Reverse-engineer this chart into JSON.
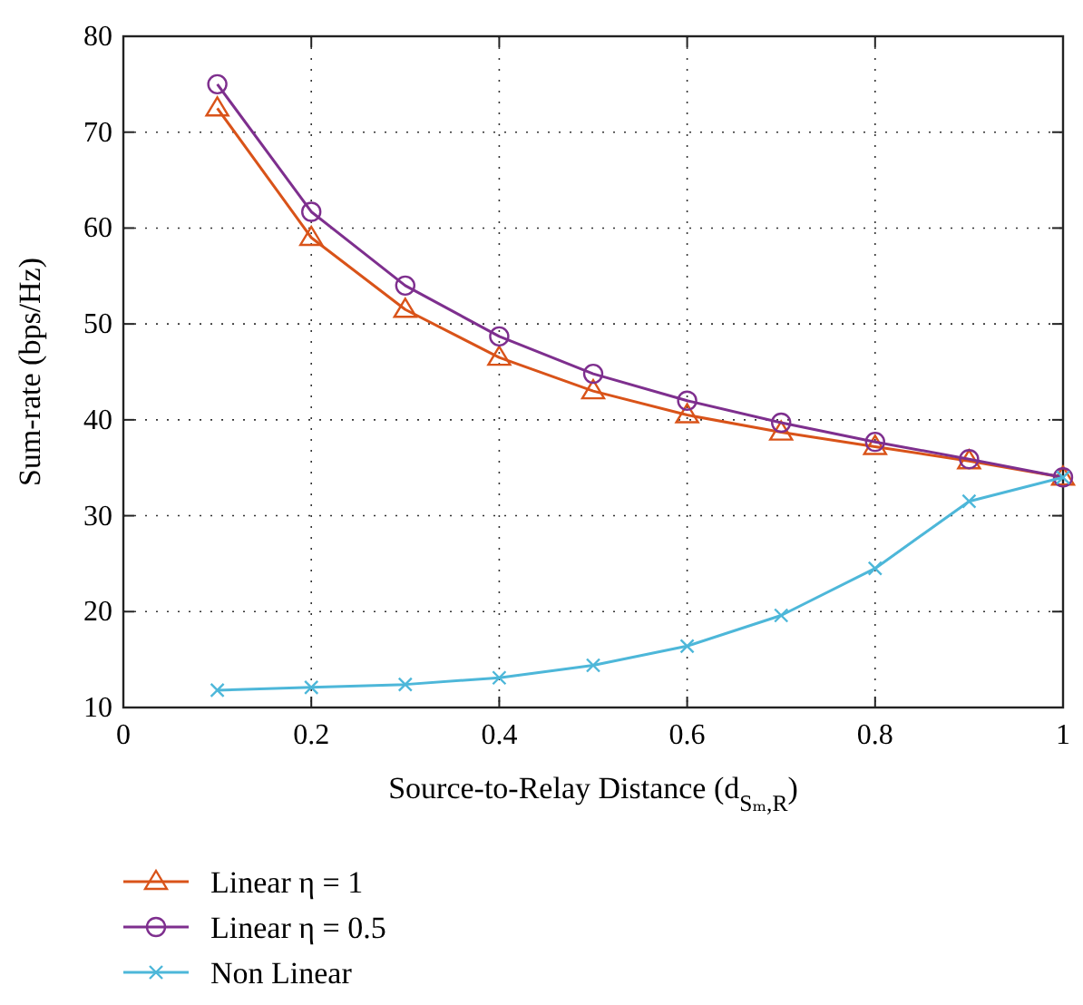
{
  "chart_data": {
    "type": "line",
    "xlabel": "Source-to-Relay Distance (d$_{Sₘ,R}$)",
    "ylabel": "Sum-rate (bps/Hz)",
    "x": [
      0.1,
      0.2,
      0.3,
      0.4,
      0.5,
      0.6,
      0.7,
      0.8,
      0.9,
      1.0
    ],
    "xlim": [
      0,
      1
    ],
    "xticks": [
      0,
      0.2,
      0.4,
      0.6,
      0.8,
      1
    ],
    "ylim": [
      10,
      80
    ],
    "yticks": [
      10,
      20,
      30,
      40,
      50,
      60,
      70,
      80
    ],
    "grid": true,
    "legend": "bottom",
    "line_style": "solid",
    "series": [
      {
        "name": "Linear η = 1",
        "color": "#d95319",
        "marker": "triangle",
        "values": [
          72.5,
          59,
          51.5,
          46.5,
          43,
          40.5,
          38.7,
          37.2,
          35.7,
          34
        ]
      },
      {
        "name": "Linear η = 0.5",
        "color": "#7e2f8e",
        "marker": "circle",
        "values": [
          75,
          61.7,
          54,
          48.7,
          44.8,
          42,
          39.7,
          37.7,
          35.9,
          34
        ]
      },
      {
        "name": "Non Linear",
        "color": "#4db7d9",
        "marker": "cross",
        "values": [
          11.8,
          12.1,
          12.4,
          13.1,
          14.4,
          16.4,
          19.6,
          24.5,
          31.5,
          34
        ]
      }
    ]
  }
}
